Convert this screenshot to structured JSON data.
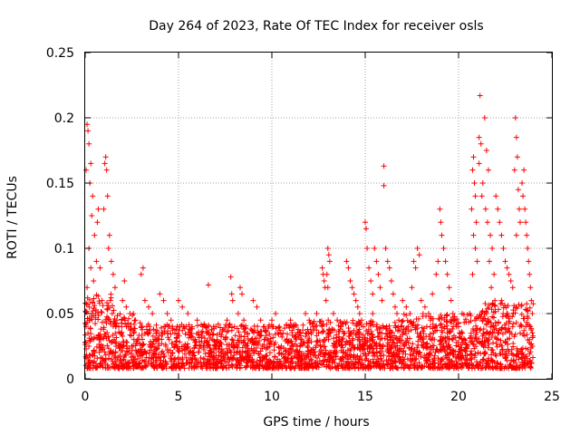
{
  "chart_data": {
    "type": "scatter",
    "title": "Day 264 of 2023, Rate Of TEC Index for receiver osls",
    "xlabel": "GPS time / hours",
    "ylabel": "ROTI / TECUs",
    "xlim": [
      0,
      25
    ],
    "ylim": [
      0,
      0.25
    ],
    "xticks": [
      0,
      5,
      10,
      15,
      20,
      25
    ],
    "yticks": [
      0,
      0.05,
      0.1,
      0.15,
      0.2,
      0.25
    ],
    "xtick_labels": [
      "0",
      "5",
      "10",
      "15",
      "20",
      "25"
    ],
    "ytick_labels": [
      "0",
      "0.05",
      "0.1",
      "0.15",
      "0.2",
      "0.25"
    ],
    "grid": true,
    "marker": "plus",
    "color": "#ff0000",
    "points": [
      [
        0.1,
        0.195
      ],
      [
        0.15,
        0.19
      ],
      [
        0.2,
        0.18
      ],
      [
        0.3,
        0.165
      ],
      [
        0.05,
        0.16
      ],
      [
        0.25,
        0.15
      ],
      [
        0.4,
        0.14
      ],
      [
        0.35,
        0.125
      ],
      [
        0.5,
        0.11
      ],
      [
        0.2,
        0.1
      ],
      [
        0.6,
        0.09
      ],
      [
        0.8,
        0.085
      ],
      [
        0.7,
        0.13
      ],
      [
        0.65,
        0.12
      ],
      [
        0.3,
        0.085
      ],
      [
        0.45,
        0.075
      ],
      [
        0.1,
        0.07
      ],
      [
        0.9,
        0.06
      ],
      [
        0.55,
        0.05
      ],
      [
        0.25,
        0.045
      ],
      [
        0.05,
        0.04
      ],
      [
        0.15,
        0.035
      ],
      [
        0.35,
        0.03
      ],
      [
        0.75,
        0.03
      ],
      [
        0.95,
        0.025
      ],
      [
        0.5,
        0.02
      ],
      [
        0.2,
        0.025
      ],
      [
        1.1,
        0.17
      ],
      [
        1.05,
        0.165
      ],
      [
        1.15,
        0.16
      ],
      [
        1.2,
        0.14
      ],
      [
        1.0,
        0.13
      ],
      [
        1.3,
        0.11
      ],
      [
        1.25,
        0.1
      ],
      [
        1.4,
        0.09
      ],
      [
        1.5,
        0.08
      ],
      [
        1.6,
        0.07
      ],
      [
        1.35,
        0.06
      ],
      [
        1.45,
        0.05
      ],
      [
        1.7,
        0.045
      ],
      [
        1.8,
        0.04
      ],
      [
        1.9,
        0.035
      ],
      [
        1.55,
        0.03
      ],
      [
        1.65,
        0.025
      ],
      [
        2.1,
        0.075
      ],
      [
        2.0,
        0.06
      ],
      [
        2.2,
        0.055
      ],
      [
        2.4,
        0.05
      ],
      [
        2.3,
        0.04
      ],
      [
        2.6,
        0.035
      ],
      [
        2.8,
        0.03
      ],
      [
        2.5,
        0.025
      ],
      [
        2.9,
        0.02
      ],
      [
        2.7,
        0.045
      ],
      [
        3.0,
        0.08
      ],
      [
        3.1,
        0.085
      ],
      [
        3.2,
        0.06
      ],
      [
        3.4,
        0.055
      ],
      [
        3.6,
        0.05
      ],
      [
        3.3,
        0.04
      ],
      [
        3.8,
        0.035
      ],
      [
        3.9,
        0.03
      ],
      [
        3.5,
        0.025
      ],
      [
        3.7,
        0.02
      ],
      [
        4.0,
        0.065
      ],
      [
        4.2,
        0.06
      ],
      [
        4.4,
        0.05
      ],
      [
        4.6,
        0.045
      ],
      [
        4.3,
        0.04
      ],
      [
        4.8,
        0.035
      ],
      [
        4.5,
        0.03
      ],
      [
        4.9,
        0.025
      ],
      [
        4.1,
        0.02
      ],
      [
        5.0,
        0.06
      ],
      [
        5.2,
        0.055
      ],
      [
        5.5,
        0.05
      ],
      [
        5.4,
        0.04
      ],
      [
        5.7,
        0.035
      ],
      [
        5.9,
        0.03
      ],
      [
        5.3,
        0.025
      ],
      [
        5.8,
        0.02
      ],
      [
        5.1,
        0.015
      ],
      [
        6.0,
        0.045
      ],
      [
        6.3,
        0.04
      ],
      [
        6.6,
        0.072
      ],
      [
        6.5,
        0.035
      ],
      [
        6.8,
        0.03
      ],
      [
        6.2,
        0.025
      ],
      [
        6.9,
        0.02
      ],
      [
        6.4,
        0.015
      ],
      [
        7.0,
        0.04
      ],
      [
        7.2,
        0.035
      ],
      [
        7.5,
        0.03
      ],
      [
        7.7,
        0.025
      ],
      [
        7.3,
        0.02
      ],
      [
        7.9,
        0.015
      ],
      [
        7.8,
        0.078
      ],
      [
        7.85,
        0.065
      ],
      [
        7.9,
        0.06
      ],
      [
        7.6,
        0.045
      ],
      [
        8.0,
        0.04
      ],
      [
        8.3,
        0.07
      ],
      [
        8.4,
        0.065
      ],
      [
        8.2,
        0.05
      ],
      [
        8.5,
        0.045
      ],
      [
        8.7,
        0.035
      ],
      [
        8.9,
        0.03
      ],
      [
        8.6,
        0.025
      ],
      [
        8.1,
        0.02
      ],
      [
        9.0,
        0.06
      ],
      [
        9.2,
        0.055
      ],
      [
        9.4,
        0.045
      ],
      [
        9.6,
        0.04
      ],
      [
        9.3,
        0.035
      ],
      [
        9.8,
        0.03
      ],
      [
        9.5,
        0.025
      ],
      [
        9.9,
        0.02
      ],
      [
        9.7,
        0.015
      ],
      [
        10.0,
        0.045
      ],
      [
        10.2,
        0.05
      ],
      [
        10.4,
        0.04
      ],
      [
        10.6,
        0.035
      ],
      [
        10.8,
        0.03
      ],
      [
        10.5,
        0.025
      ],
      [
        10.9,
        0.02
      ],
      [
        10.3,
        0.015
      ],
      [
        11.0,
        0.045
      ],
      [
        11.2,
        0.04
      ],
      [
        11.5,
        0.035
      ],
      [
        11.8,
        0.05
      ],
      [
        11.6,
        0.03
      ],
      [
        11.9,
        0.025
      ],
      [
        11.3,
        0.02
      ],
      [
        11.7,
        0.015
      ],
      [
        12.0,
        0.045
      ],
      [
        12.2,
        0.04
      ],
      [
        12.4,
        0.05
      ],
      [
        12.5,
        0.035
      ],
      [
        12.8,
        0.03
      ],
      [
        12.6,
        0.025
      ],
      [
        12.9,
        0.02
      ],
      [
        12.1,
        0.015
      ],
      [
        12.7,
        0.085
      ],
      [
        12.75,
        0.08
      ],
      [
        12.8,
        0.075
      ],
      [
        12.85,
        0.07
      ],
      [
        12.9,
        0.06
      ],
      [
        13.0,
        0.1
      ],
      [
        13.05,
        0.095
      ],
      [
        13.1,
        0.09
      ],
      [
        12.95,
        0.08
      ],
      [
        13.0,
        0.07
      ],
      [
        13.3,
        0.05
      ],
      [
        13.5,
        0.045
      ],
      [
        13.7,
        0.04
      ],
      [
        13.9,
        0.035
      ],
      [
        13.6,
        0.03
      ],
      [
        13.4,
        0.025
      ],
      [
        13.8,
        0.02
      ],
      [
        14.0,
        0.09
      ],
      [
        14.1,
        0.085
      ],
      [
        14.2,
        0.075
      ],
      [
        14.3,
        0.07
      ],
      [
        14.4,
        0.065
      ],
      [
        14.5,
        0.06
      ],
      [
        14.6,
        0.055
      ],
      [
        14.7,
        0.05
      ],
      [
        14.8,
        0.045
      ],
      [
        14.9,
        0.04
      ],
      [
        14.2,
        0.035
      ],
      [
        14.6,
        0.03
      ],
      [
        14.9,
        0.025
      ],
      [
        15.0,
        0.12
      ],
      [
        15.05,
        0.115
      ],
      [
        15.1,
        0.1
      ],
      [
        15.2,
        0.085
      ],
      [
        15.3,
        0.075
      ],
      [
        15.4,
        0.065
      ],
      [
        15.5,
        0.1
      ],
      [
        15.6,
        0.09
      ],
      [
        15.7,
        0.08
      ],
      [
        15.8,
        0.07
      ],
      [
        15.9,
        0.06
      ],
      [
        15.4,
        0.05
      ],
      [
        15.6,
        0.04
      ],
      [
        15.8,
        0.03
      ],
      [
        15.3,
        0.025
      ],
      [
        16.0,
        0.163
      ],
      [
        16.0,
        0.148
      ],
      [
        16.1,
        0.1
      ],
      [
        16.2,
        0.09
      ],
      [
        16.3,
        0.085
      ],
      [
        16.4,
        0.075
      ],
      [
        16.5,
        0.065
      ],
      [
        16.6,
        0.055
      ],
      [
        16.7,
        0.05
      ],
      [
        16.8,
        0.045
      ],
      [
        16.9,
        0.04
      ],
      [
        16.5,
        0.03
      ],
      [
        16.2,
        0.025
      ],
      [
        17.0,
        0.06
      ],
      [
        17.2,
        0.055
      ],
      [
        17.4,
        0.05
      ],
      [
        17.6,
        0.09
      ],
      [
        17.7,
        0.085
      ],
      [
        17.8,
        0.1
      ],
      [
        17.9,
        0.095
      ],
      [
        17.5,
        0.07
      ],
      [
        17.3,
        0.04
      ],
      [
        17.8,
        0.035
      ],
      [
        17.1,
        0.025
      ],
      [
        17.9,
        0.02
      ],
      [
        18.0,
        0.06
      ],
      [
        18.2,
        0.055
      ],
      [
        18.4,
        0.05
      ],
      [
        18.6,
        0.065
      ],
      [
        18.8,
        0.08
      ],
      [
        18.9,
        0.09
      ],
      [
        18.5,
        0.045
      ],
      [
        18.3,
        0.04
      ],
      [
        18.7,
        0.03
      ],
      [
        18.1,
        0.025
      ],
      [
        19.0,
        0.13
      ],
      [
        19.05,
        0.12
      ],
      [
        19.1,
        0.11
      ],
      [
        19.2,
        0.1
      ],
      [
        19.3,
        0.09
      ],
      [
        19.4,
        0.08
      ],
      [
        19.5,
        0.07
      ],
      [
        19.6,
        0.06
      ],
      [
        19.7,
        0.05
      ],
      [
        19.8,
        0.045
      ],
      [
        19.9,
        0.04
      ],
      [
        19.4,
        0.035
      ],
      [
        19.7,
        0.03
      ],
      [
        19.2,
        0.025
      ],
      [
        20.0,
        0.04
      ],
      [
        20.2,
        0.035
      ],
      [
        20.3,
        0.03
      ],
      [
        20.5,
        0.025
      ],
      [
        20.1,
        0.02
      ],
      [
        20.4,
        0.015
      ],
      [
        20.6,
        0.05
      ],
      [
        20.8,
        0.17
      ],
      [
        20.75,
        0.16
      ],
      [
        20.85,
        0.15
      ],
      [
        20.9,
        0.14
      ],
      [
        20.7,
        0.13
      ],
      [
        20.95,
        0.12
      ],
      [
        20.8,
        0.11
      ],
      [
        20.9,
        0.1
      ],
      [
        21.0,
        0.09
      ],
      [
        20.75,
        0.08
      ],
      [
        21.15,
        0.217
      ],
      [
        21.1,
        0.185
      ],
      [
        21.2,
        0.18
      ],
      [
        21.1,
        0.165
      ],
      [
        21.3,
        0.15
      ],
      [
        21.25,
        0.14
      ],
      [
        21.4,
        0.2
      ],
      [
        21.5,
        0.175
      ],
      [
        21.6,
        0.16
      ],
      [
        21.45,
        0.13
      ],
      [
        21.55,
        0.12
      ],
      [
        21.7,
        0.11
      ],
      [
        21.8,
        0.1
      ],
      [
        21.65,
        0.09
      ],
      [
        21.9,
        0.08
      ],
      [
        21.75,
        0.07
      ],
      [
        21.95,
        0.06
      ],
      [
        21.5,
        0.05
      ],
      [
        21.3,
        0.045
      ],
      [
        21.8,
        0.04
      ],
      [
        22.0,
        0.14
      ],
      [
        22.1,
        0.13
      ],
      [
        22.2,
        0.12
      ],
      [
        22.3,
        0.11
      ],
      [
        22.4,
        0.1
      ],
      [
        22.5,
        0.09
      ],
      [
        22.6,
        0.085
      ],
      [
        22.7,
        0.08
      ],
      [
        22.8,
        0.075
      ],
      [
        22.9,
        0.07
      ],
      [
        22.3,
        0.06
      ],
      [
        22.6,
        0.05
      ],
      [
        22.9,
        0.04
      ],
      [
        22.1,
        0.035
      ],
      [
        23.05,
        0.2
      ],
      [
        23.1,
        0.185
      ],
      [
        23.15,
        0.17
      ],
      [
        23.0,
        0.16
      ],
      [
        23.2,
        0.145
      ],
      [
        23.25,
        0.13
      ],
      [
        23.3,
        0.12
      ],
      [
        23.1,
        0.11
      ],
      [
        23.4,
        0.15
      ],
      [
        23.45,
        0.14
      ],
      [
        23.5,
        0.16
      ],
      [
        23.55,
        0.13
      ],
      [
        23.6,
        0.12
      ],
      [
        23.65,
        0.11
      ],
      [
        23.7,
        0.1
      ],
      [
        23.75,
        0.09
      ],
      [
        23.8,
        0.08
      ],
      [
        23.85,
        0.07
      ],
      [
        23.9,
        0.06
      ],
      [
        23.95,
        0.05
      ],
      [
        23.6,
        0.04
      ],
      [
        23.3,
        0.035
      ],
      [
        23.8,
        0.03
      ],
      [
        23.95,
        0.025
      ]
    ]
  }
}
